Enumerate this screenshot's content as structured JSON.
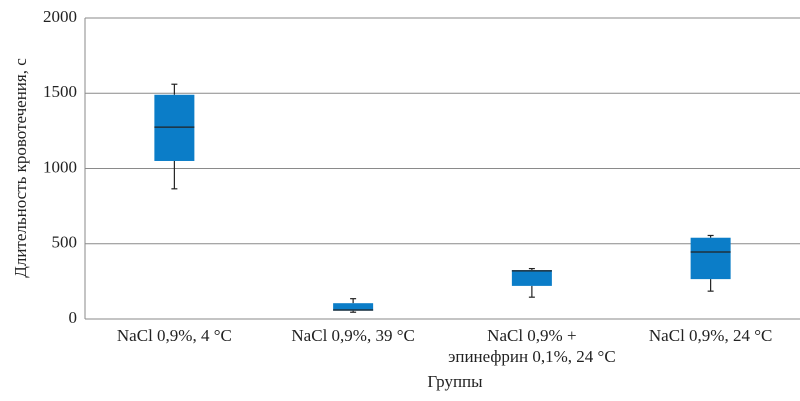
{
  "chart_data": {
    "type": "box",
    "y_label": "Длительность кровотечения, с",
    "x_label": "Группы",
    "categories": [
      "NaCl 0,9%, 4 °C",
      "NaCl 0,9%, 39 °C",
      "NaCl 0,9% +\nэпинефрин 0,1%, 24 °C",
      "NaCl 0,9%, 24 °C"
    ],
    "boxes": [
      {
        "min": 865,
        "q1": 1050,
        "median": 1275,
        "q3": 1490,
        "max": 1560
      },
      {
        "min": 45,
        "q1": 55,
        "median": 60,
        "q3": 105,
        "max": 135
      },
      {
        "min": 145,
        "q1": 220,
        "median": 320,
        "q3": 325,
        "max": 335
      },
      {
        "min": 185,
        "q1": 265,
        "median": 445,
        "q3": 540,
        "max": 555
      }
    ],
    "color": "#0b7dc8",
    "ylim": [
      0,
      2000
    ],
    "yticks": [
      0,
      500,
      1000,
      1500,
      2000
    ],
    "grid": true
  }
}
